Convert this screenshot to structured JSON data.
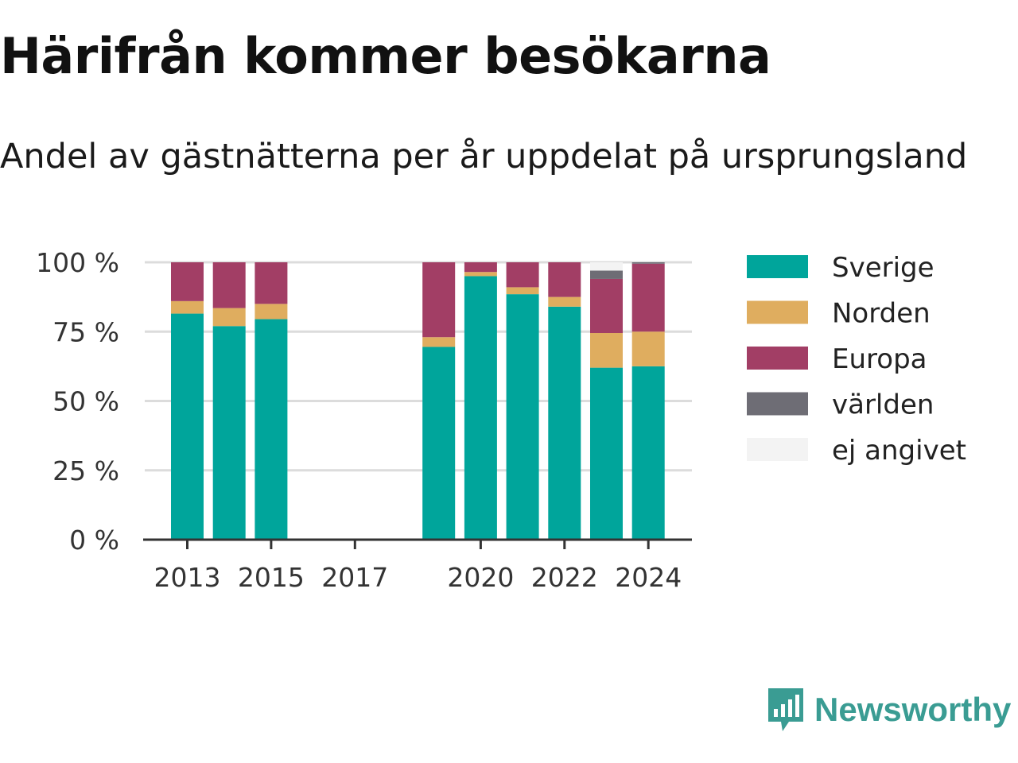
{
  "header": {
    "title": "Härifrån kommer besökarna",
    "subtitle": "Andel av gästnätterna per år uppdelat på ursprungsland"
  },
  "logo": {
    "text": "Newsworthy",
    "color": "#3a9c93",
    "icon": "newsworthy-chart-bubble-icon"
  },
  "chart_data": {
    "type": "bar",
    "stacked": true,
    "categories": [
      "2013",
      "2014",
      "2015",
      "2016",
      "2017",
      "2018",
      "2019",
      "2020",
      "2021",
      "2022",
      "2023",
      "2024"
    ],
    "x_tick_labels": [
      "2013",
      "2015",
      "2017",
      "2020",
      "2022",
      "2024"
    ],
    "y_tick_labels": [
      "0 %",
      "25 %",
      "50 %",
      "75 %",
      "100 %"
    ],
    "ylim": [
      0,
      100
    ],
    "grid": true,
    "legend_position": "right",
    "series": [
      {
        "name": "Sverige",
        "color": "#00a59b",
        "values": [
          81.5,
          77,
          79.5,
          null,
          null,
          null,
          69.5,
          95,
          88.5,
          84,
          62,
          62.5
        ]
      },
      {
        "name": "Norden",
        "color": "#dfad5f",
        "values": [
          4.5,
          6.5,
          5.5,
          null,
          null,
          null,
          3.5,
          1.5,
          2.5,
          3.5,
          12.5,
          12.5
        ]
      },
      {
        "name": "Europa",
        "color": "#a23e65",
        "values": [
          14,
          16.5,
          15,
          null,
          null,
          null,
          27,
          3.5,
          9,
          12.5,
          19.5,
          24.5
        ]
      },
      {
        "name": "världen",
        "color": "#6e6d75",
        "values": [
          0,
          0,
          0,
          null,
          null,
          null,
          0,
          0,
          0,
          0,
          3,
          0.5
        ]
      },
      {
        "name": "ej angivet",
        "color": "#f3f3f3",
        "values": [
          0,
          0,
          0,
          null,
          null,
          null,
          0,
          0,
          0,
          0,
          3,
          0
        ]
      }
    ]
  }
}
